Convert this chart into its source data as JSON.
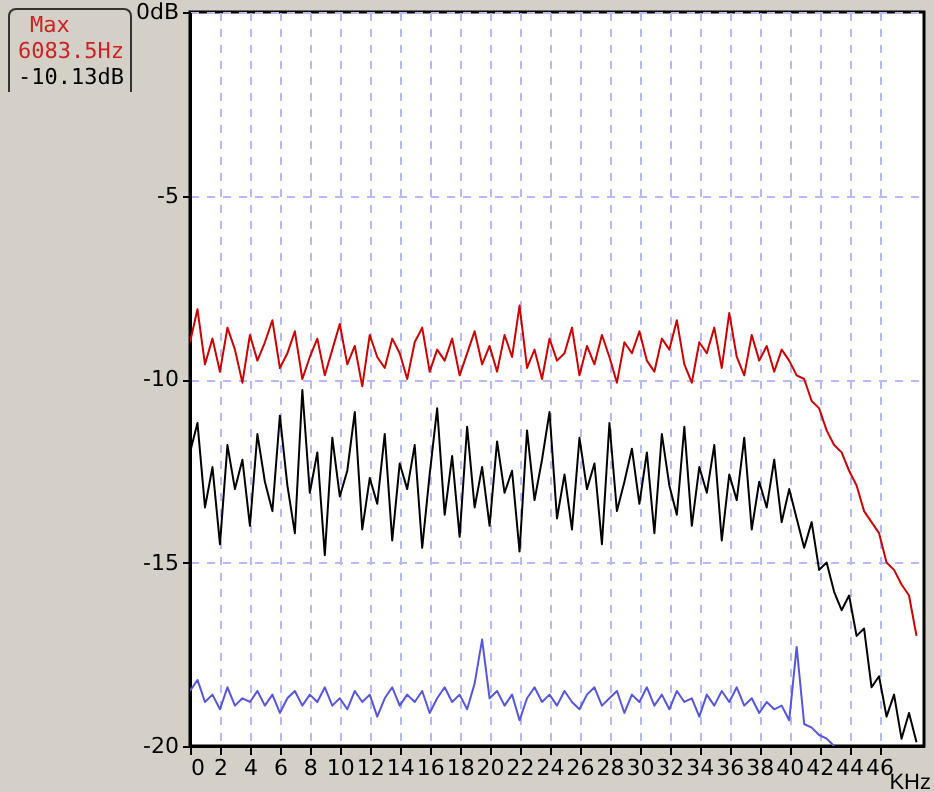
{
  "chart_data": {
    "type": "line",
    "xlabel": "KHz",
    "annotations": [
      "Max",
      "6083.5Hz",
      "-10.13dB"
    ],
    "x": [
      0,
      0.5,
      1,
      1.5,
      2,
      2.5,
      3,
      3.5,
      4,
      4.5,
      5,
      5.5,
      6,
      6.5,
      7,
      7.5,
      8,
      8.5,
      9,
      9.5,
      10,
      10.5,
      11,
      11.5,
      12,
      12.5,
      13,
      13.5,
      14,
      14.5,
      15,
      15.5,
      16,
      16.5,
      17,
      17.5,
      18,
      18.5,
      19,
      19.5,
      20,
      20.5,
      21,
      21.5,
      22,
      22.5,
      23,
      23.5,
      24,
      24.5,
      25,
      25.5,
      26,
      26.5,
      27,
      27.5,
      28,
      28.5,
      29,
      29.5,
      30,
      30.5,
      31,
      31.5,
      32,
      32.5,
      33,
      33.5,
      34,
      34.5,
      35,
      35.5,
      36,
      36.5,
      37,
      37.5,
      38,
      38.5,
      39,
      39.5,
      40,
      40.5,
      41,
      41.5,
      42,
      42.5,
      43,
      43.5,
      44,
      44.5,
      45,
      45.5,
      46,
      46.5,
      47,
      47.5,
      48,
      48.5
    ],
    "series": [
      {
        "color": "#cc0000",
        "values": [
          -9.0,
          -8.1,
          -9.6,
          -8.9,
          -9.8,
          -8.6,
          -9.2,
          -10.1,
          -8.8,
          -9.5,
          -9.0,
          -8.4,
          -9.7,
          -9.3,
          -8.7,
          -10.0,
          -9.4,
          -8.9,
          -9.9,
          -9.2,
          -8.5,
          -9.6,
          -9.1,
          -10.2,
          -8.8,
          -9.4,
          -9.7,
          -8.9,
          -9.3,
          -10.0,
          -9.0,
          -8.6,
          -9.8,
          -9.2,
          -9.5,
          -8.9,
          -9.9,
          -9.3,
          -8.7,
          -9.6,
          -9.1,
          -9.8,
          -8.8,
          -9.4,
          -8.0,
          -9.7,
          -9.2,
          -10.0,
          -8.9,
          -9.5,
          -9.3,
          -8.6,
          -9.9,
          -9.1,
          -9.6,
          -8.8,
          -9.4,
          -10.1,
          -9.0,
          -9.3,
          -8.7,
          -9.5,
          -9.8,
          -8.9,
          -9.2,
          -8.4,
          -9.6,
          -10.1,
          -9.0,
          -9.3,
          -8.6,
          -9.7,
          -8.2,
          -9.4,
          -9.9,
          -8.8,
          -9.5,
          -9.1,
          -9.8,
          -9.2,
          -9.5,
          -9.9,
          -10.0,
          -10.6,
          -10.8,
          -11.4,
          -11.8,
          -12.0,
          -12.5,
          -12.9,
          -13.6,
          -13.9,
          -14.2,
          -15.0,
          -15.2,
          -15.6,
          -15.9,
          -17.0
        ]
      },
      {
        "color": "#000000",
        "values": [
          -12.0,
          -11.2,
          -13.5,
          -12.4,
          -14.5,
          -11.8,
          -13.0,
          -12.2,
          -14.0,
          -11.5,
          -12.8,
          -13.6,
          -11.0,
          -12.9,
          -14.2,
          -10.3,
          -13.1,
          -12.0,
          -14.8,
          -11.6,
          -13.2,
          -12.5,
          -10.9,
          -14.1,
          -12.7,
          -13.4,
          -11.5,
          -14.4,
          -12.3,
          -13.0,
          -11.8,
          -14.6,
          -12.6,
          -10.8,
          -13.7,
          -12.1,
          -14.3,
          -11.3,
          -13.5,
          -12.4,
          -14.0,
          -11.7,
          -13.1,
          -12.5,
          -14.7,
          -11.4,
          -13.3,
          -12.2,
          -10.9,
          -13.8,
          -12.6,
          -14.1,
          -11.6,
          -13.0,
          -12.3,
          -14.5,
          -11.2,
          -13.6,
          -12.8,
          -11.9,
          -13.4,
          -12.0,
          -14.2,
          -11.5,
          -12.9,
          -13.7,
          -11.3,
          -14.0,
          -12.4,
          -13.1,
          -11.8,
          -14.4,
          -12.6,
          -13.3,
          -11.6,
          -14.1,
          -12.8,
          -13.5,
          -12.2,
          -13.9,
          -13.0,
          -13.8,
          -14.6,
          -13.9,
          -15.2,
          -15.0,
          -15.8,
          -16.3,
          -15.9,
          -17.0,
          -16.8,
          -18.4,
          -18.1,
          -19.2,
          -18.6,
          -19.8,
          -19.1,
          -19.9
        ]
      },
      {
        "color": "#5555dd",
        "x": [
          0,
          0.5,
          1,
          1.5,
          2,
          2.5,
          3,
          3.5,
          4,
          4.5,
          5,
          5.5,
          6,
          6.5,
          7,
          7.5,
          8,
          8.5,
          9,
          9.5,
          10,
          10.5,
          11,
          11.5,
          12,
          12.5,
          13,
          13.5,
          14,
          14.5,
          15,
          15.5,
          16,
          16.5,
          17,
          17.5,
          18,
          18.5,
          19,
          19.5,
          20,
          20.5,
          21,
          21.5,
          22,
          22.5,
          23,
          23.5,
          24,
          24.5,
          25,
          25.5,
          26,
          26.5,
          27,
          27.5,
          28,
          28.5,
          29,
          29.5,
          30,
          30.5,
          31,
          31.5,
          32,
          32.5,
          33,
          33.5,
          34,
          34.5,
          35,
          35.5,
          36,
          36.5,
          37,
          37.5,
          38,
          38.5,
          39,
          39.5,
          40,
          40.5,
          41,
          41.5,
          42,
          42.5,
          43
        ],
        "values": [
          -18.5,
          -18.2,
          -18.8,
          -18.6,
          -19.0,
          -18.4,
          -18.9,
          -18.7,
          -18.8,
          -18.5,
          -18.9,
          -18.6,
          -19.1,
          -18.7,
          -18.5,
          -18.9,
          -18.6,
          -18.8,
          -18.4,
          -18.9,
          -18.7,
          -19.0,
          -18.5,
          -18.8,
          -18.6,
          -19.2,
          -18.7,
          -18.4,
          -18.9,
          -18.6,
          -18.8,
          -18.5,
          -19.1,
          -18.7,
          -18.4,
          -18.8,
          -18.6,
          -19.0,
          -18.3,
          -17.1,
          -18.7,
          -18.5,
          -18.9,
          -18.6,
          -19.3,
          -18.7,
          -18.4,
          -18.8,
          -18.6,
          -18.9,
          -18.5,
          -18.8,
          -19.0,
          -18.6,
          -18.4,
          -18.9,
          -18.7,
          -18.5,
          -19.1,
          -18.6,
          -18.8,
          -18.4,
          -18.9,
          -18.6,
          -19.0,
          -18.5,
          -18.8,
          -18.7,
          -19.2,
          -18.6,
          -18.9,
          -18.5,
          -18.8,
          -18.4,
          -18.9,
          -18.7,
          -19.1,
          -18.8,
          -19.0,
          -18.9,
          -19.3,
          -17.3,
          -19.4,
          -19.5,
          -19.7,
          -19.8,
          -20.0
        ]
      }
    ],
    "xlim": [
      0,
      49
    ],
    "xticks": [
      0,
      2,
      4,
      6,
      8,
      10,
      12,
      14,
      16,
      18,
      20,
      22,
      24,
      26,
      28,
      30,
      32,
      34,
      36,
      38,
      40,
      42,
      44,
      46
    ],
    "ylim": [
      -20,
      0
    ],
    "yticks": [
      {
        "value": 0,
        "label": "0dB"
      },
      -5,
      -10,
      -15,
      -20
    ],
    "grid": true
  }
}
